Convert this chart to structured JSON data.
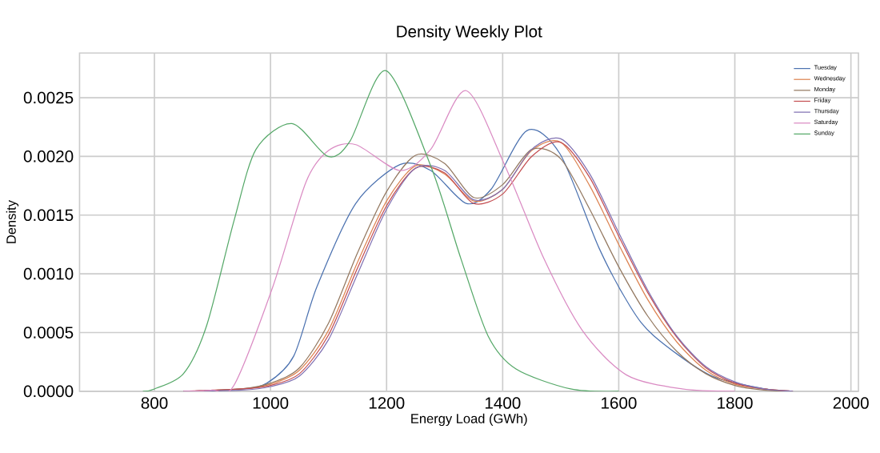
{
  "chart_data": {
    "type": "line",
    "title": "Density Weekly Plot",
    "xlabel": "Energy Load (GWh)",
    "ylabel": "Density",
    "xlim": [
      671,
      2013
    ],
    "ylim": [
      0,
      0.00288
    ],
    "xticks": [
      800,
      1000,
      1200,
      1400,
      1600,
      1800,
      2000
    ],
    "yticks": [
      {
        "value": 0,
        "label": "0.0000"
      },
      {
        "value": 0.0005,
        "label": "0.0005"
      },
      {
        "value": 0.001,
        "label": "0.0010"
      },
      {
        "value": 0.0015,
        "label": "0.0015"
      },
      {
        "value": 0.002,
        "label": "0.0020"
      },
      {
        "value": 0.0025,
        "label": "0.0025"
      }
    ],
    "grid": true,
    "legend": "top right",
    "marker": "none",
    "line_style": "solid",
    "x": [
      850,
      950,
      1000,
      1050,
      1100,
      1150,
      1200,
      1250,
      1300,
      1350,
      1400,
      1450,
      1500,
      1550,
      1600,
      1650,
      1700,
      1750,
      1800,
      1850,
      1900
    ],
    "series": [
      {
        "name": "Tuesday",
        "color": "#4c72b0",
        "x": [
          850,
          950,
          994,
          1040,
          1080,
          1147,
          1223,
          1276,
          1337,
          1380,
          1442,
          1499,
          1566,
          1620,
          1661,
          1756,
          1852,
          1900
        ],
        "values": [
          0,
          2e-05,
          7e-05,
          0.0003,
          0.00089,
          0.0016,
          0.00193,
          0.00188,
          0.0016,
          0.00172,
          0.00222,
          0.00202,
          0.00122,
          0.00072,
          0.00047,
          0.00014,
          2e-05,
          0
        ]
      },
      {
        "name": "Wednesday",
        "color": "#dd8452",
        "values": [
          0,
          2e-05,
          6e-05,
          0.00018,
          0.00052,
          0.0011,
          0.00162,
          0.00192,
          0.00185,
          0.00162,
          0.00172,
          0.00205,
          0.00212,
          0.00175,
          0.00125,
          0.00078,
          0.00042,
          0.00018,
          6e-05,
          2e-05,
          0
        ]
      },
      {
        "name": "Monday",
        "color": "#937860",
        "values": [
          0,
          2e-05,
          7e-05,
          0.0002,
          0.00058,
          0.00118,
          0.0017,
          0.00201,
          0.00194,
          0.00165,
          0.00176,
          0.00206,
          0.00198,
          0.00155,
          0.00106,
          0.00064,
          0.00034,
          0.00015,
          5e-05,
          1e-05,
          0
        ]
      },
      {
        "name": "Friday",
        "color": "#c44e52",
        "values": [
          0,
          2e-05,
          5e-05,
          0.00015,
          0.00048,
          0.00105,
          0.00158,
          0.0019,
          0.00186,
          0.0016,
          0.00168,
          0.002,
          0.00212,
          0.00182,
          0.00132,
          0.00084,
          0.00046,
          0.0002,
          7e-05,
          2e-05,
          0
        ]
      },
      {
        "name": "Thursday",
        "color": "#8172b3",
        "values": [
          0,
          1e-05,
          4e-05,
          0.00013,
          0.00044,
          0.001,
          0.00155,
          0.0019,
          0.00188,
          0.00163,
          0.00172,
          0.00206,
          0.00215,
          0.00185,
          0.00135,
          0.00086,
          0.00047,
          0.00021,
          8e-05,
          2e-05,
          0
        ]
      },
      {
        "name": "Saturday",
        "color": "#da8bc3",
        "x": [
          850,
          900,
          937,
          1004,
          1061,
          1100,
          1147,
          1223,
          1276,
          1337,
          1404,
          1471,
          1537,
          1613,
          1709,
          1800
        ],
        "values": [
          0,
          1e-05,
          5e-05,
          0.00089,
          0.00178,
          0.00205,
          0.0021,
          0.00188,
          0.00206,
          0.00256,
          0.00192,
          0.00113,
          0.00052,
          0.00014,
          2e-05,
          0
        ]
      },
      {
        "name": "Sunday",
        "color": "#55a868",
        "x": [
          780,
          800,
          850,
          890,
          937,
          975,
          1037,
          1099,
          1137,
          1199,
          1276,
          1328,
          1375,
          1423,
          1517,
          1600
        ],
        "values": [
          0,
          2e-05,
          0.00015,
          0.00056,
          0.00145,
          0.00206,
          0.00228,
          0.002,
          0.00213,
          0.00273,
          0.00192,
          0.00113,
          0.00047,
          0.00019,
          2e-05,
          0
        ]
      }
    ]
  }
}
